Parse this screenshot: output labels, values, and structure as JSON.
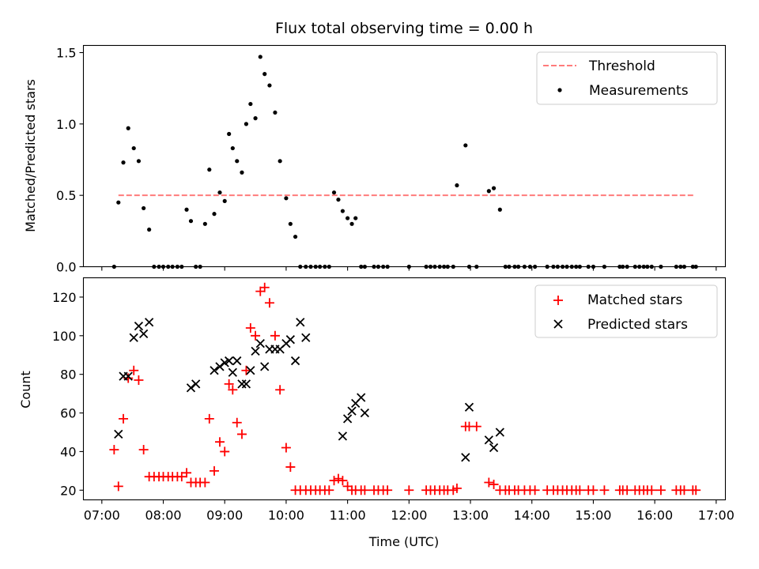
{
  "chart_data": [
    {
      "type": "scatter",
      "title": "Flux total observing time = 0.00 h",
      "xlabel": "",
      "ylabel": "Matched/Predicted stars",
      "ylim": [
        0,
        1.55
      ],
      "yticks": [
        0.0,
        0.5,
        1.0,
        1.5
      ],
      "ytick_labels": [
        "0.0",
        "0.5",
        "1.0",
        "1.5"
      ],
      "legend_position": "top-right",
      "threshold": {
        "name": "Threshold",
        "value": 0.5,
        "x_start": 7.27,
        "x_end": 16.65,
        "color": "#ff7b7b"
      },
      "series": [
        {
          "name": "Measurements",
          "color": "#000000",
          "marker": "dot",
          "x": [
            7.2,
            7.27,
            7.35,
            7.43,
            7.52,
            7.6,
            7.68,
            7.77,
            7.85,
            7.93,
            8.0,
            8.08,
            8.15,
            8.23,
            8.3,
            8.38,
            8.45,
            8.53,
            8.6,
            8.68,
            8.75,
            8.83,
            8.92,
            9.0,
            9.07,
            9.13,
            9.2,
            9.28,
            9.35,
            9.42,
            9.5,
            9.58,
            9.65,
            9.73,
            9.82,
            9.9,
            10.0,
            10.07,
            10.15,
            10.23,
            10.32,
            10.4,
            10.48,
            10.55,
            10.63,
            10.7,
            10.78,
            10.85,
            10.92,
            11.0,
            11.07,
            11.13,
            11.22,
            11.28,
            11.43,
            11.5,
            11.58,
            11.65,
            12.0,
            12.28,
            12.35,
            12.42,
            12.5,
            12.57,
            12.63,
            12.72,
            12.78,
            12.92,
            12.98,
            13.1,
            13.3,
            13.38,
            13.48,
            13.57,
            13.63,
            13.72,
            13.78,
            13.88,
            13.97,
            14.05,
            14.25,
            14.35,
            14.42,
            14.5,
            14.57,
            14.65,
            14.72,
            14.78,
            14.92,
            15.0,
            15.18,
            15.43,
            15.48,
            15.55,
            15.68,
            15.75,
            15.82,
            15.88,
            15.95,
            16.1,
            16.35,
            16.42,
            16.48,
            16.62,
            16.67
          ],
          "y": [
            0,
            0.45,
            0.73,
            0.97,
            0.83,
            0.74,
            0.41,
            0.26,
            0,
            0,
            0,
            0,
            0,
            0,
            0,
            0.4,
            0.32,
            0,
            0,
            0.3,
            0.68,
            0.37,
            0.52,
            0.46,
            0.93,
            0.83,
            0.74,
            0.66,
            1.0,
            1.14,
            1.04,
            1.47,
            1.35,
            1.27,
            1.08,
            0.74,
            0.48,
            0.3,
            0.21,
            0,
            0,
            0,
            0,
            0,
            0,
            0,
            0.52,
            0.47,
            0.39,
            0.34,
            0.3,
            0.34,
            0,
            0,
            0,
            0,
            0,
            0,
            0,
            0,
            0,
            0,
            0,
            0,
            0,
            0,
            0.57,
            0.85,
            0,
            0,
            0.53,
            0.55,
            0.4,
            0,
            0,
            0,
            0,
            0,
            0,
            0,
            0,
            0,
            0,
            0,
            0,
            0,
            0,
            0,
            0,
            0,
            0,
            0,
            0,
            0,
            0,
            0,
            0,
            0,
            0,
            0,
            0,
            0,
            0,
            0,
            0
          ]
        }
      ]
    },
    {
      "type": "scatter",
      "title": "",
      "xlabel": "Time (UTC)",
      "ylabel": "Count",
      "xlim": [
        6.7,
        17.15
      ],
      "ylim": [
        15,
        130
      ],
      "xticks": [
        7,
        8,
        9,
        10,
        11,
        12,
        13,
        14,
        15,
        16,
        17
      ],
      "xtick_labels": [
        "07:00",
        "08:00",
        "09:00",
        "10:00",
        "11:00",
        "12:00",
        "13:00",
        "14:00",
        "15:00",
        "16:00",
        "17:00"
      ],
      "yticks": [
        20,
        40,
        60,
        80,
        100,
        120
      ],
      "ytick_labels": [
        "20",
        "40",
        "60",
        "80",
        "100",
        "120"
      ],
      "legend_position": "top-right",
      "series": [
        {
          "name": "Matched stars",
          "color": "#ff0000",
          "marker": "plus",
          "x": [
            7.2,
            7.27,
            7.35,
            7.43,
            7.52,
            7.6,
            7.68,
            7.77,
            7.85,
            7.93,
            8.0,
            8.08,
            8.15,
            8.23,
            8.3,
            8.38,
            8.45,
            8.53,
            8.6,
            8.68,
            8.75,
            8.83,
            8.92,
            9.0,
            9.07,
            9.13,
            9.2,
            9.28,
            9.35,
            9.42,
            9.5,
            9.58,
            9.65,
            9.73,
            9.82,
            9.9,
            10.0,
            10.07,
            10.15,
            10.23,
            10.32,
            10.4,
            10.48,
            10.55,
            10.63,
            10.7,
            10.78,
            10.85,
            10.92,
            11.0,
            11.07,
            11.13,
            11.22,
            11.28,
            11.43,
            11.5,
            11.58,
            11.65,
            12.0,
            12.28,
            12.35,
            12.42,
            12.5,
            12.57,
            12.63,
            12.72,
            12.78,
            12.92,
            12.98,
            13.1,
            13.3,
            13.38,
            13.48,
            13.57,
            13.63,
            13.72,
            13.78,
            13.88,
            13.97,
            14.05,
            14.25,
            14.35,
            14.42,
            14.5,
            14.57,
            14.65,
            14.72,
            14.78,
            14.92,
            15.0,
            15.18,
            15.43,
            15.48,
            15.55,
            15.68,
            15.75,
            15.82,
            15.88,
            15.95,
            16.1,
            16.35,
            16.42,
            16.48,
            16.62,
            16.67
          ],
          "y": [
            41,
            22,
            57,
            78,
            82,
            77,
            41,
            27,
            27,
            27,
            27,
            27,
            27,
            27,
            27,
            29,
            24,
            24,
            24,
            24,
            57,
            30,
            45,
            40,
            75,
            72,
            55,
            49,
            82,
            104,
            100,
            123,
            125,
            117,
            100,
            72,
            42,
            32,
            20,
            20,
            20,
            20,
            20,
            20,
            20,
            20,
            25,
            26,
            25,
            22,
            20,
            20,
            20,
            20,
            20,
            20,
            20,
            20,
            20,
            20,
            20,
            20,
            20,
            20,
            20,
            20,
            21,
            53,
            53,
            53,
            24,
            23,
            20,
            20,
            20,
            20,
            20,
            20,
            20,
            20,
            20,
            20,
            20,
            20,
            20,
            20,
            20,
            20,
            20,
            20,
            20,
            20,
            20,
            20,
            20,
            20,
            20,
            20,
            20,
            20,
            20,
            20,
            20,
            20,
            20
          ]
        },
        {
          "name": "Predicted stars",
          "color": "#000000",
          "marker": "x",
          "x": [
            7.27,
            7.35,
            7.43,
            7.52,
            7.6,
            7.68,
            7.77,
            8.45,
            8.53,
            8.83,
            8.92,
            9.0,
            9.07,
            9.13,
            9.2,
            9.28,
            9.35,
            9.42,
            9.5,
            9.58,
            9.65,
            9.73,
            9.82,
            9.9,
            10.0,
            10.07,
            10.15,
            10.23,
            10.32,
            10.92,
            11.0,
            11.07,
            11.13,
            11.22,
            11.28,
            12.92,
            12.98,
            13.3,
            13.38,
            13.48
          ],
          "y": [
            49,
            79,
            79,
            99,
            105,
            101,
            107,
            73,
            75,
            82,
            84,
            86,
            87,
            81,
            87,
            75,
            75,
            82,
            92,
            96,
            84,
            93,
            93,
            93,
            96,
            98,
            87,
            107,
            99,
            48,
            57,
            61,
            65,
            68,
            60,
            37,
            63,
            46,
            42,
            50
          ]
        }
      ]
    }
  ],
  "legend_top": {
    "threshold_label": "Threshold",
    "measurements_label": "Measurements"
  },
  "legend_bottom": {
    "matched_label": "Matched stars",
    "predicted_label": "Predicted stars"
  }
}
